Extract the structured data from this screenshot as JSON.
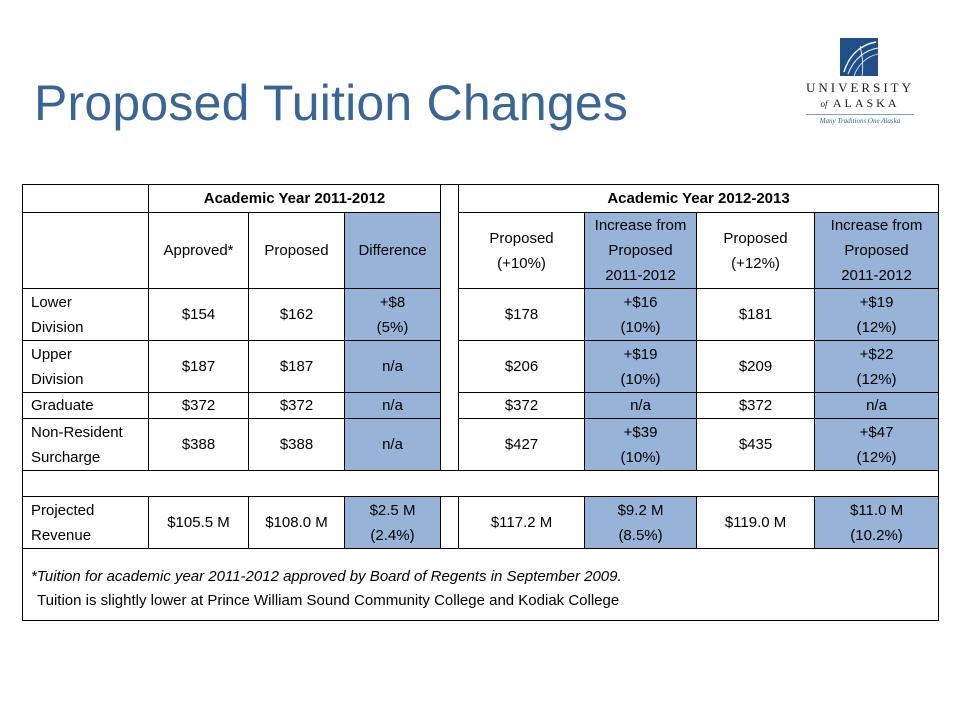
{
  "slide": {
    "title": "Proposed Tuition Changes"
  },
  "logo": {
    "line1": "UNIVERSITY",
    "line2_small": "of",
    "line2": "ALASKA",
    "tagline": "Many Traditions One Alaska",
    "mark_color": "#1f4e89"
  },
  "table": {
    "group_headers": {
      "year1": "Academic Year 2011-2012",
      "year2": "Academic Year 2012-2013"
    },
    "columns": {
      "approved": "Approved*",
      "proposed": "Proposed",
      "difference": "Difference",
      "proposed10_l1": "Proposed",
      "proposed10_l2": "(+10%)",
      "increase_a_l1": "Increase from",
      "increase_a_l2": "Proposed",
      "increase_a_l3": "2011-2012",
      "proposed12_l1": "Proposed",
      "proposed12_l2": "(+12%)",
      "increase_b_l1": "Increase from",
      "increase_b_l2": "Proposed",
      "increase_b_l3": "2011-2012"
    },
    "rows": [
      {
        "label_l1": "Lower",
        "label_l2": "Division",
        "approved": "$154",
        "proposed": "$162",
        "diff_l1": "+$8",
        "diff_l2": "(5%)",
        "p10": "$178",
        "inc10_l1": "+$16",
        "inc10_l2": "(10%)",
        "p12": "$181",
        "inc12_l1": "+$19",
        "inc12_l2": "(12%)"
      },
      {
        "label_l1": "Upper",
        "label_l2": "Division",
        "approved": "$187",
        "proposed": "$187",
        "diff_l1": "n/a",
        "diff_l2": "",
        "p10": "$206",
        "inc10_l1": "+$19",
        "inc10_l2": "(10%)",
        "p12": "$209",
        "inc12_l1": "+$22",
        "inc12_l2": "(12%)"
      },
      {
        "label_l1": "Graduate",
        "label_l2": "",
        "approved": "$372",
        "proposed": "$372",
        "diff_l1": "n/a",
        "diff_l2": "",
        "p10": "$372",
        "inc10_l1": "n/a",
        "inc10_l2": "",
        "p12": "$372",
        "inc12_l1": "n/a",
        "inc12_l2": ""
      },
      {
        "label_l1": "Non-Resident",
        "label_l2": "Surcharge",
        "approved": "$388",
        "proposed": "$388",
        "diff_l1": "n/a",
        "diff_l2": "",
        "p10": "$427",
        "inc10_l1": "+$39",
        "inc10_l2": "(10%)",
        "p12": "$435",
        "inc12_l1": "+$47",
        "inc12_l2": "(12%)"
      }
    ],
    "revenue": {
      "label_l1": "Projected",
      "label_l2": "Revenue",
      "approved": "$105.5 M",
      "proposed": "$108.0 M",
      "diff_l1": "$2.5 M",
      "diff_l2": "(2.4%)",
      "p10": "$117.2 M",
      "inc10_l1": "$9.2 M",
      "inc10_l2": "(8.5%)",
      "p12": "$119.0 M",
      "inc12_l1": "$11.0 M",
      "inc12_l2": "(10.2%)"
    },
    "footnote_1": "*Tuition for academic year 2011-2012 approved by Board of Regents in September 2009.",
    "footnote_2": "Tuition is slightly lower at Prince William Sound Community College and Kodiak College",
    "highlight_color": "#97b4d8"
  }
}
